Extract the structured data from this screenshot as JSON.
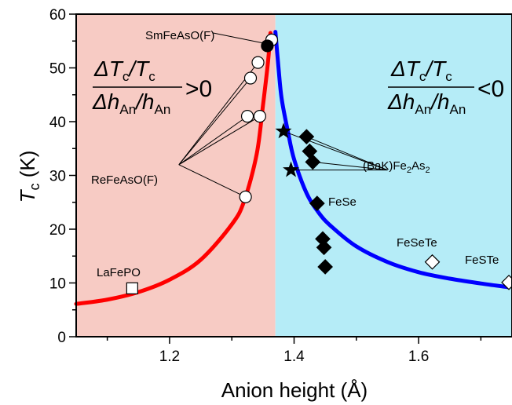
{
  "chart_data": {
    "type": "scatter",
    "xlabel": "Anion height (Å)",
    "ylabel": {
      "main": "T",
      "sub": "c",
      "unit": " (K)"
    },
    "xlim": [
      1.05,
      1.75
    ],
    "ylim": [
      0,
      60
    ],
    "xticks": [
      1.2,
      1.4,
      1.6
    ],
    "yticks": [
      0,
      10,
      20,
      30,
      40,
      50,
      60
    ],
    "xtick_labels": [
      "1.2",
      "1.4",
      "1.6"
    ],
    "ytick_labels": [
      "0",
      "10",
      "20",
      "30",
      "40",
      "50",
      "60"
    ],
    "grid": false,
    "regions": [
      {
        "name": "left",
        "x_range": [
          1.05,
          1.37
        ],
        "color": "#f7cbc4"
      },
      {
        "name": "right",
        "x_range": [
          1.37,
          1.75
        ],
        "color": "#b5ecf7"
      }
    ],
    "region_labels": {
      "left": {
        "dT": "ΔT",
        "dT_sub": "c",
        "T": "/T",
        "T_sub": "c",
        "dh": "Δh",
        "dh_sub": "An",
        "h": "/h",
        "h_sub": "An",
        "sign": ">0"
      },
      "right": {
        "dT": "ΔT",
        "dT_sub": "c",
        "T": "/T",
        "T_sub": "c",
        "dh": "Δh",
        "dh_sub": "An",
        "h": "/h",
        "h_sub": "An",
        "sign": "<0"
      }
    },
    "series": [
      {
        "marker": "circle-open",
        "color": "#000000",
        "points": [
          [
            1.322,
            26
          ],
          [
            1.325,
            41
          ],
          [
            1.33,
            48.1
          ],
          [
            1.342,
            51
          ],
          [
            1.345,
            41
          ],
          [
            1.364,
            55.2
          ]
        ]
      },
      {
        "marker": "circle-filled",
        "color": "#000000",
        "points": [
          [
            1.357,
            54.1
          ]
        ]
      },
      {
        "marker": "square-open",
        "color": "#000000",
        "points": [
          [
            1.14,
            9
          ]
        ]
      },
      {
        "marker": "star",
        "color": "#000000",
        "points": [
          [
            1.383,
            38.2
          ],
          [
            1.395,
            31
          ]
        ]
      },
      {
        "marker": "diamond-filled",
        "color": "#000000",
        "points": [
          [
            1.42,
            37.2
          ],
          [
            1.425,
            34.5
          ],
          [
            1.43,
            32.5
          ],
          [
            1.437,
            24.8
          ],
          [
            1.446,
            18.2
          ],
          [
            1.448,
            16.6
          ],
          [
            1.45,
            13
          ]
        ]
      },
      {
        "marker": "diamond-open",
        "color": "#000000",
        "points": [
          [
            1.622,
            13.9
          ],
          [
            1.745,
            10.1
          ]
        ]
      }
    ],
    "curves": [
      {
        "name": "left-trend",
        "color": "#ff0000",
        "points": [
          [
            1.05,
            6.1
          ],
          [
            1.1,
            6.9
          ],
          [
            1.15,
            8.3
          ],
          [
            1.2,
            10.6
          ],
          [
            1.25,
            14.3
          ],
          [
            1.3,
            20.9
          ],
          [
            1.32,
            25.3
          ],
          [
            1.34,
            34
          ],
          [
            1.35,
            43
          ],
          [
            1.358,
            51
          ],
          [
            1.362,
            56.5
          ]
        ]
      },
      {
        "name": "right-trend",
        "color": "#0000ff",
        "points": [
          [
            1.37,
            56.7
          ],
          [
            1.375,
            50
          ],
          [
            1.38,
            44.3
          ],
          [
            1.39,
            38.2
          ],
          [
            1.4,
            33
          ],
          [
            1.42,
            26.7
          ],
          [
            1.44,
            23
          ],
          [
            1.46,
            20.5
          ],
          [
            1.5,
            16.8
          ],
          [
            1.55,
            13.9
          ],
          [
            1.6,
            12
          ],
          [
            1.65,
            10.8
          ],
          [
            1.7,
            9.9
          ],
          [
            1.745,
            9.2
          ]
        ]
      }
    ],
    "annotations": [
      {
        "text": "SmFeAsO(F)",
        "sup": null
      },
      {
        "text": "ReFeAsO(F)",
        "sup": null
      },
      {
        "text": "(BaK)Fe",
        "sub1": "2",
        "mid": "As",
        "sub2": "2"
      },
      {
        "text": "FeSe"
      },
      {
        "text": "FeSeTe"
      },
      {
        "text": "FeSTe"
      },
      {
        "text": "LaFePO"
      }
    ]
  }
}
